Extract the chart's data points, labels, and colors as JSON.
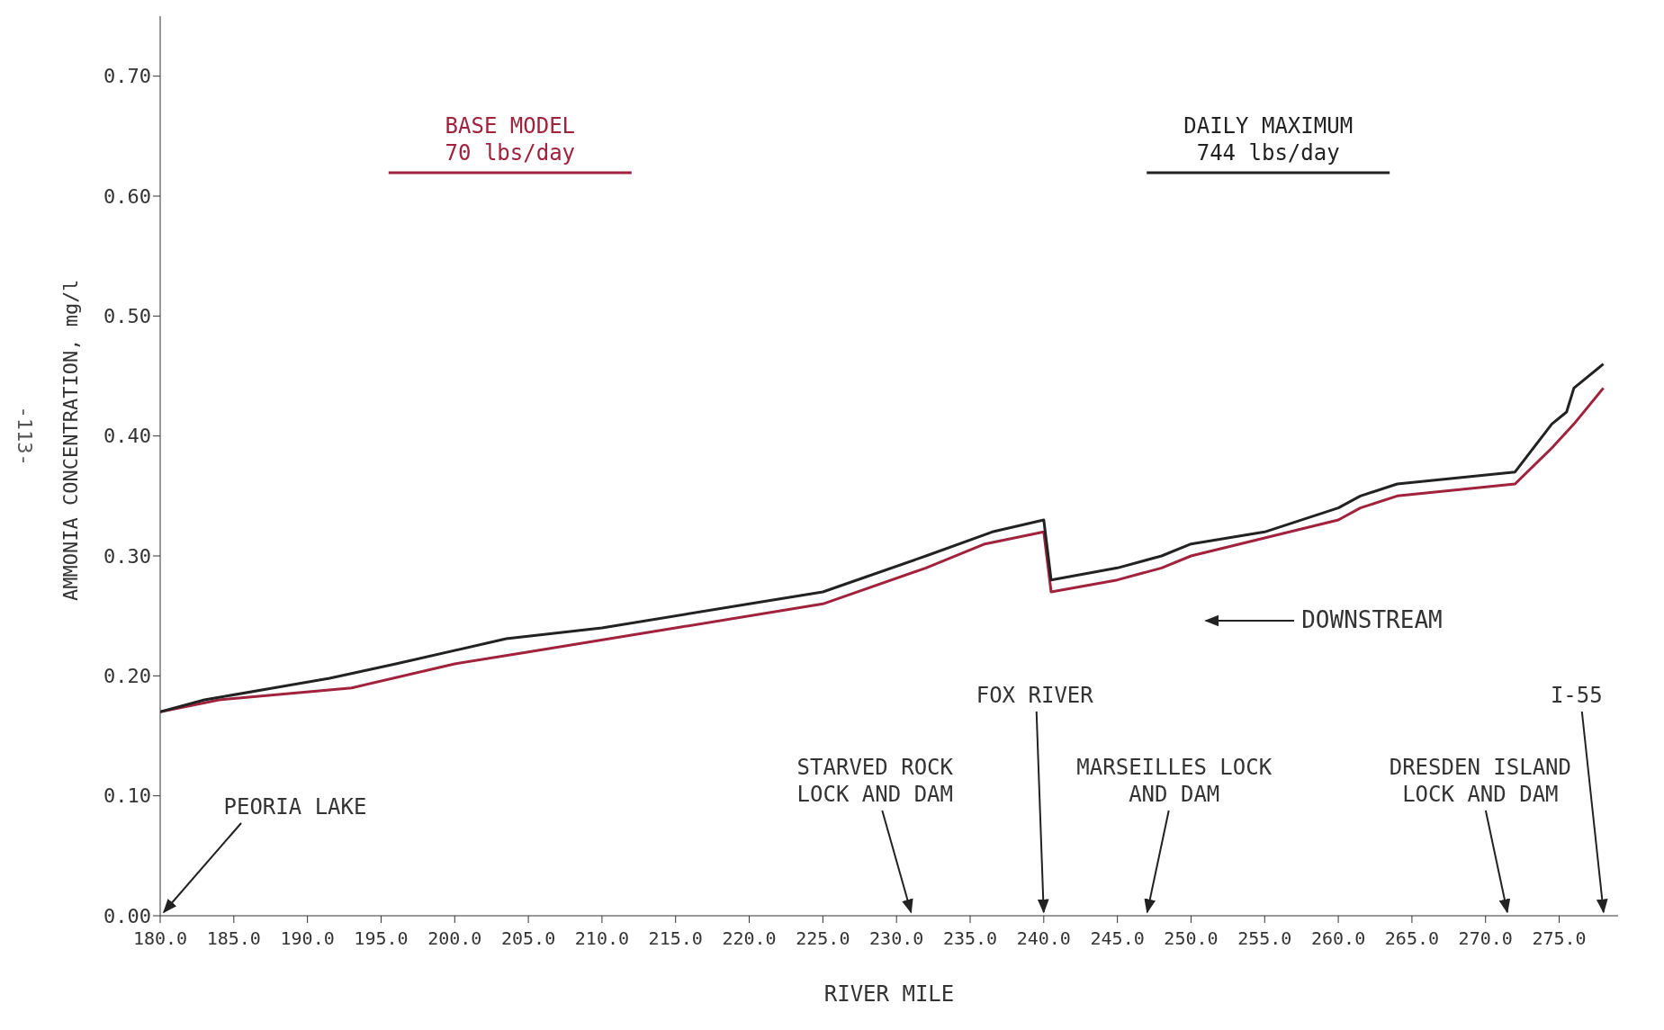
{
  "chart_data": {
    "type": "line",
    "xlabel": "RIVER MILE",
    "ylabel": "AMMONIA CONCENTRATION, mg/l",
    "xlim": [
      180,
      279
    ],
    "ylim": [
      0,
      0.75
    ],
    "xticks": [
      {
        "value": 180,
        "label": "180.0"
      },
      {
        "value": 185,
        "label": "185.0"
      },
      {
        "value": 190,
        "label": "190.0"
      },
      {
        "value": 195,
        "label": "195.0"
      },
      {
        "value": 200,
        "label": "200.0"
      },
      {
        "value": 205,
        "label": "205.0"
      },
      {
        "value": 210,
        "label": "210.0"
      },
      {
        "value": 215,
        "label": "215.0"
      },
      {
        "value": 220,
        "label": "220.0"
      },
      {
        "value": 225,
        "label": "225.0"
      },
      {
        "value": 230,
        "label": "230.0"
      },
      {
        "value": 235,
        "label": "235.0"
      },
      {
        "value": 240,
        "label": "240.0"
      },
      {
        "value": 245,
        "label": "245.0"
      },
      {
        "value": 250,
        "label": "250.0"
      },
      {
        "value": 255,
        "label": "255.0"
      },
      {
        "value": 260,
        "label": "260.0"
      },
      {
        "value": 265,
        "label": "265.0"
      },
      {
        "value": 270,
        "label": "270.0"
      },
      {
        "value": 275,
        "label": "275.0"
      }
    ],
    "yticks": [
      {
        "value": 0,
        "label": "0.00"
      },
      {
        "value": 0.1,
        "label": "0.10"
      },
      {
        "value": 0.2,
        "label": "0.20"
      },
      {
        "value": 0.3,
        "label": "0.30"
      },
      {
        "value": 0.4,
        "label": "0.40"
      },
      {
        "value": 0.5,
        "label": "0.50"
      },
      {
        "value": 0.6,
        "label": "0.60"
      },
      {
        "value": 0.7,
        "label": "0.70"
      }
    ],
    "grid": false,
    "legend": "top",
    "marker": "none",
    "line_style": "solid",
    "series": [
      {
        "name": "BASE MODEL\n70 lbs/day",
        "color": "#a0223c",
        "x": [
          180,
          184,
          193,
          200,
          205,
          215,
          225,
          232,
          236,
          240,
          240.5,
          245,
          248,
          250,
          255,
          260,
          261.5,
          264,
          272,
          274.5,
          276,
          278
        ],
        "values": [
          0.17,
          0.18,
          0.19,
          0.21,
          0.22,
          0.24,
          0.26,
          0.29,
          0.31,
          0.32,
          0.27,
          0.28,
          0.29,
          0.3,
          0.315,
          0.33,
          0.34,
          0.35,
          0.36,
          0.39,
          0.41,
          0.44
        ]
      },
      {
        "name": "DAILY MAXIMUM\n744 lbs/day",
        "color": "#222222",
        "x": [
          180,
          183,
          191.5,
          196,
          203.5,
          210,
          220,
          225,
          232,
          236.5,
          240,
          240.5,
          245,
          248,
          250,
          255,
          260,
          261.5,
          264,
          272,
          274.5,
          275.5,
          276,
          278
        ],
        "values": [
          0.17,
          0.18,
          0.198,
          0.21,
          0.231,
          0.24,
          0.26,
          0.27,
          0.3,
          0.32,
          0.33,
          0.28,
          0.29,
          0.3,
          0.31,
          0.32,
          0.34,
          0.35,
          0.36,
          0.37,
          0.41,
          0.42,
          0.44,
          0.46
        ]
      }
    ],
    "annotations": [
      "-113-",
      "DOWNSTREAM",
      "PEORIA LAKE",
      "STARVED ROCK\nLOCK AND DAM",
      "FOX RIVER",
      "MARSEILLES LOCK\nAND DAM",
      "DRESDEN ISLAND\nLOCK AND DAM",
      "I-55"
    ]
  }
}
